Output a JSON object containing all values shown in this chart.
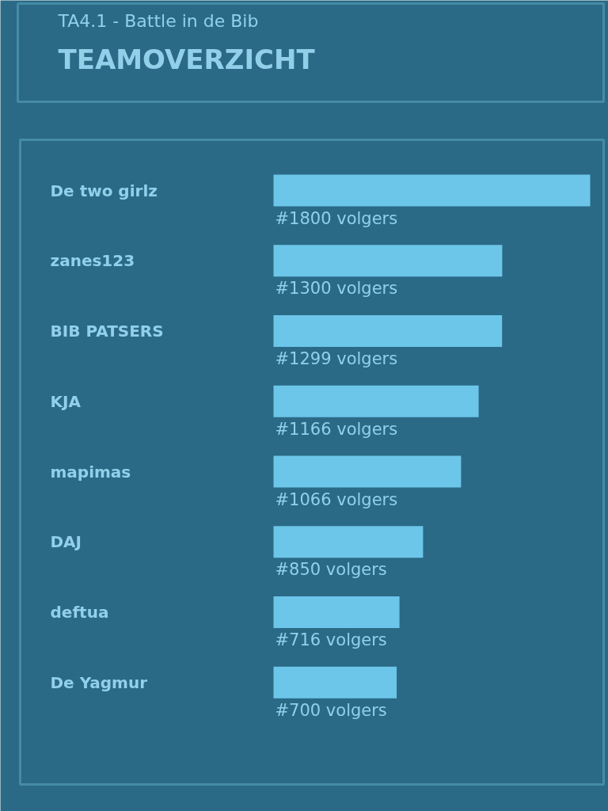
{
  "chart_data": {
    "type": "bar",
    "orientation": "horizontal",
    "subtitle": "TA4.1 - Battle in de Bib",
    "title": "TEAMOVERZICHT",
    "categories": [
      "De two girlz",
      "zanes123",
      "BIB PATSERS",
      "KJA",
      "mapimas",
      "DAJ",
      "deftua",
      "De Yagmur"
    ],
    "values": [
      1800,
      1300,
      1299,
      1166,
      1066,
      850,
      716,
      700
    ],
    "value_labels": [
      "#1800 volgers",
      "#1300 volgers",
      "#1299 volgers",
      "#1166 volgers",
      "#1066 volgers",
      "#850 volgers",
      "#716 volgers",
      "#700 volgers"
    ],
    "color": "#6cc6ea"
  }
}
